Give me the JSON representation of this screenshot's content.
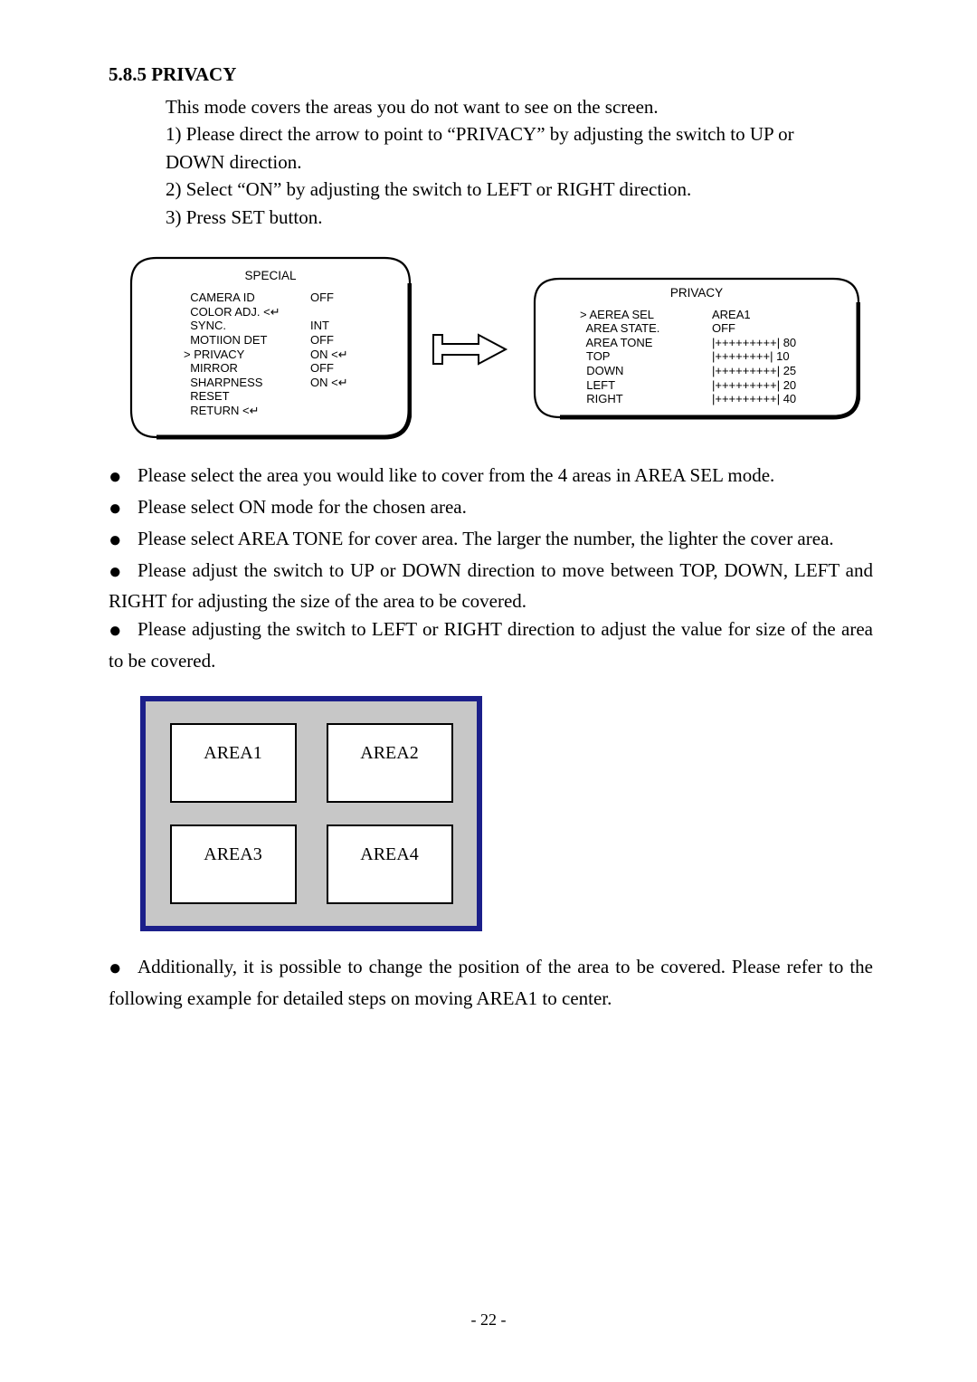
{
  "section_number": "5.8.5",
  "section_title": "PRIVACY",
  "intro_text": "This mode covers the areas you do not want to see on the screen.",
  "step1_a": "1)  Please direct the arrow to point to “PRIVACY” by adjusting the switch to UP or",
  "step1_b": "DOWN direction.",
  "step2": "2)  Select “ON” by adjusting the switch to LEFT or RIGHT direction.",
  "step3": "3)  Press SET button.",
  "special_menu": {
    "title": "SPECIAL",
    "rows": [
      [
        "  CAMERA ID",
        "OFF"
      ],
      [
        "  COLOR ADJ. <⏎",
        ""
      ],
      [
        "  SYNC.",
        "INT"
      ],
      [
        "  MOTIION DET",
        "OFF"
      ],
      [
        "> PRIVACY",
        "ON <⏎"
      ],
      [
        "  MIRROR",
        "OFF"
      ],
      [
        "  SHARPNESS",
        "ON <⏎"
      ],
      [
        "  RESET",
        ""
      ],
      [
        "  RETURN <⏎",
        ""
      ]
    ]
  },
  "privacy_menu": {
    "title": "PRIVACY",
    "rows": [
      [
        "> AEREA SEL",
        "AREA1"
      ],
      [
        "  AREA STATE.",
        "OFF"
      ],
      [
        "  AREA TONE",
        "|+++++++++| 80"
      ],
      [
        "  TOP",
        "|++++++++| 10"
      ],
      [
        "  DOWN",
        "|+++++++++| 25"
      ],
      [
        "  LEFT",
        "|+++++++++| 20"
      ],
      [
        "  RIGHT",
        "|+++++++++| 40"
      ]
    ]
  },
  "bullets": [
    "Please select the area you would like to cover from the 4 areas in AREA SEL mode.",
    "Please select ON mode for the chosen area.",
    "Please select AREA TONE for cover area. The larger the number, the lighter the cover area.",
    "Please adjust the switch to UP or DOWN direction to move between TOP, DOWN, LEFT and RIGHT for adjusting the size of the area to be covered.",
    "Please adjusting the switch to LEFT or RIGHT direction to adjust the value for size of the area to be covered."
  ],
  "areas": [
    "AREA1",
    "AREA2",
    "AREA3",
    "AREA4"
  ],
  "final_bullet": "Additionally, it is possible to change the position of the area to be covered. Please refer to the following example for detailed steps on moving AREA1 to center.",
  "page_number": "- 22 -",
  "colors": {
    "diagram_border": "#1b1f8a",
    "diagram_fill": "#c7c7c7"
  }
}
